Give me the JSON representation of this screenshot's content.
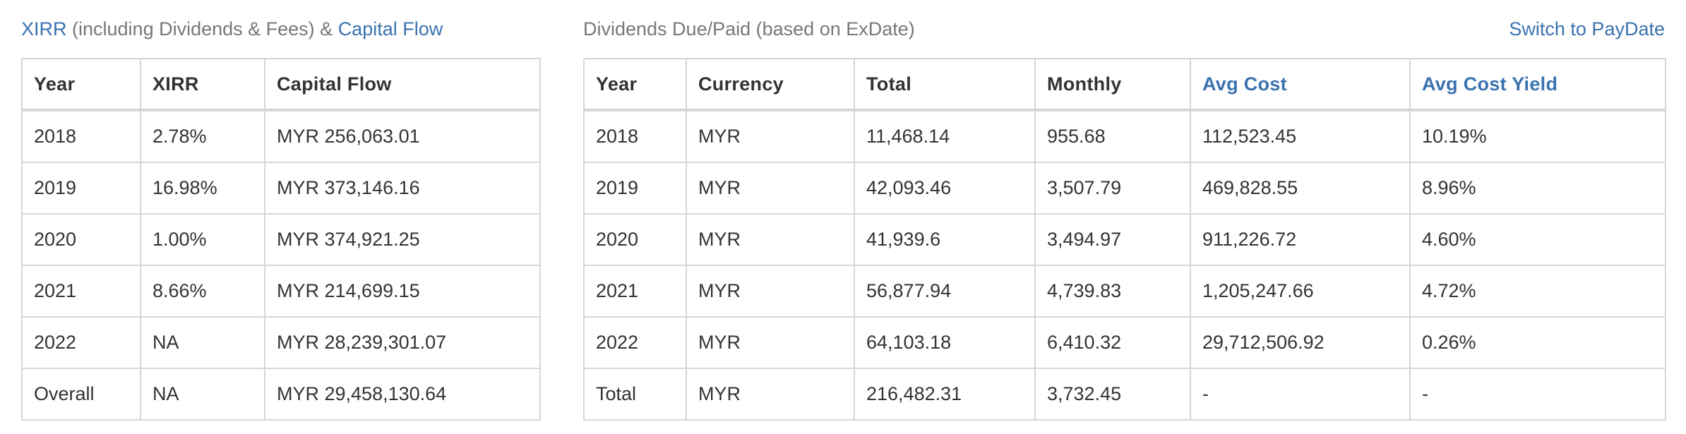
{
  "left_panel": {
    "title_link_xirr": "XIRR",
    "title_middle": " (including Dividends & Fees) & ",
    "title_link_capital_flow": "Capital Flow",
    "table": {
      "headers": [
        "Year",
        "XIRR",
        "Capital Flow"
      ],
      "rows": [
        [
          "2018",
          "2.78%",
          "MYR 256,063.01"
        ],
        [
          "2019",
          "16.98%",
          "MYR 373,146.16"
        ],
        [
          "2020",
          "1.00%",
          "MYR 374,921.25"
        ],
        [
          "2021",
          "8.66%",
          "MYR 214,699.15"
        ],
        [
          "2022",
          "NA",
          "MYR 28,239,301.07"
        ],
        [
          "Overall",
          "NA",
          "MYR 29,458,130.64"
        ]
      ]
    }
  },
  "right_panel": {
    "title": "Dividends Due/Paid (based on ExDate)",
    "switch_label": "Switch to PayDate",
    "table": {
      "headers": [
        "Year",
        "Currency",
        "Total",
        "Monthly",
        "Avg Cost",
        "Avg Cost Yield"
      ],
      "rows": [
        [
          "2018",
          "MYR",
          "11,468.14",
          "955.68",
          "112,523.45",
          "10.19%"
        ],
        [
          "2019",
          "MYR",
          "42,093.46",
          "3,507.79",
          "469,828.55",
          "8.96%"
        ],
        [
          "2020",
          "MYR",
          "41,939.6",
          "3,494.97",
          "911,226.72",
          "4.60%"
        ],
        [
          "2021",
          "MYR",
          "56,877.94",
          "4,739.83",
          "1,205,247.66",
          "4.72%"
        ],
        [
          "2022",
          "MYR",
          "64,103.18",
          "6,410.32",
          "29,712,506.92",
          "0.26%"
        ],
        [
          "Total",
          "MYR",
          "216,482.31",
          "3,732.45",
          "-",
          "-"
        ]
      ]
    }
  },
  "colors": {
    "link": "#3a72b0",
    "muted_text": "#777777",
    "text": "#333333",
    "border": "#d6d6d6"
  }
}
